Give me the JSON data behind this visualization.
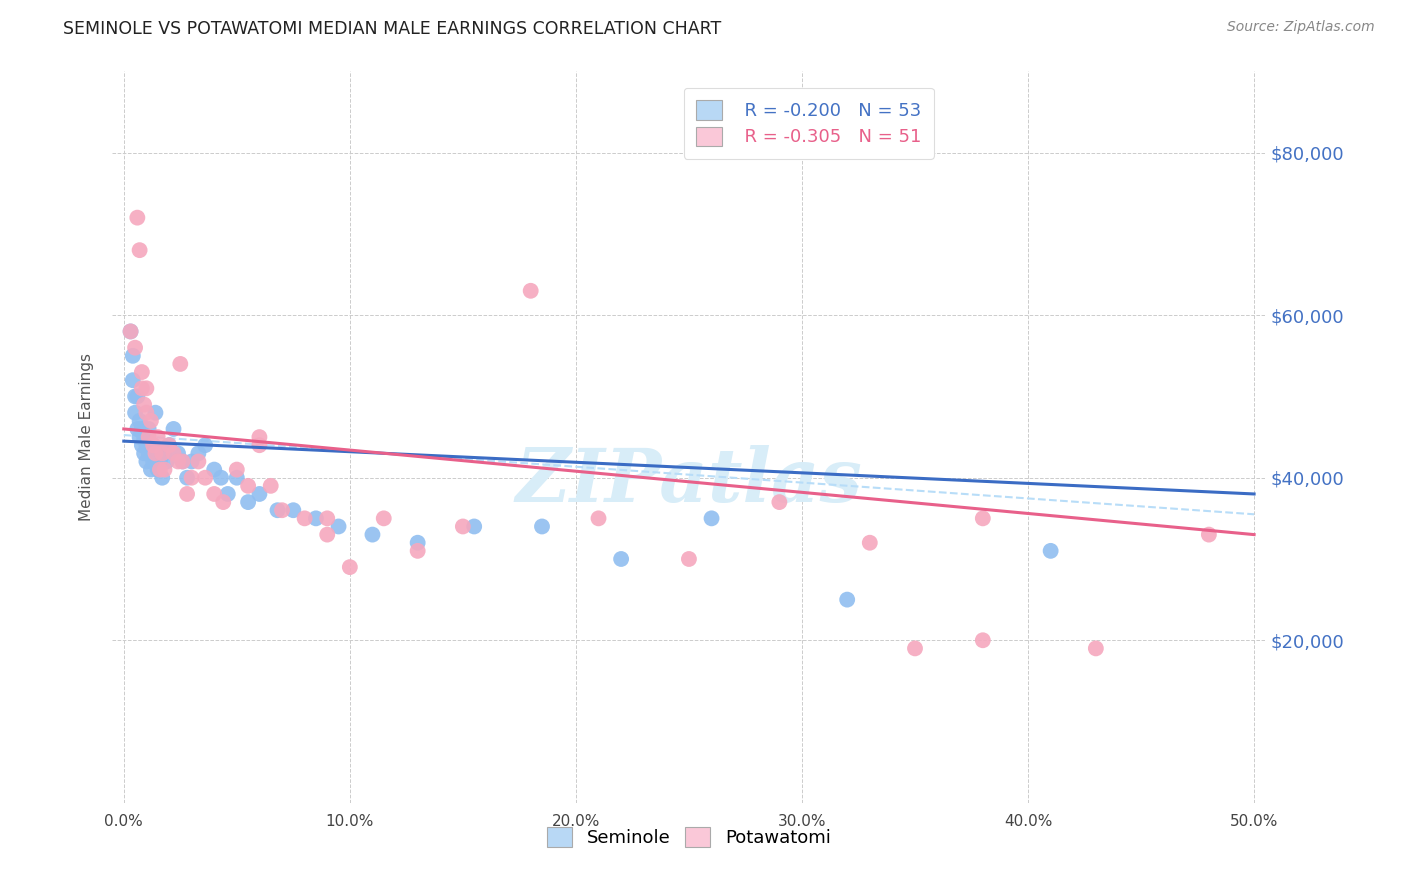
{
  "title": "SEMINOLE VS POTAWATOMI MEDIAN MALE EARNINGS CORRELATION CHART",
  "source": "Source: ZipAtlas.com",
  "ylabel": "Median Male Earnings",
  "y_ticks": [
    20000,
    40000,
    60000,
    80000
  ],
  "y_tick_labels": [
    "$20,000",
    "$40,000",
    "$60,000",
    "$80,000"
  ],
  "x_range": [
    0.0,
    0.5
  ],
  "y_range": [
    0,
    90000
  ],
  "seminole_R": "-0.200",
  "seminole_N": "53",
  "potawatomi_R": "-0.305",
  "potawatomi_N": "51",
  "seminole_color": "#90BEF0",
  "potawatomi_color": "#F5A8BE",
  "seminole_line_color": "#3B6CC4",
  "potawatomi_line_color": "#E8608A",
  "dash_line_color": "#B8DDF8",
  "watermark_color": "#D8EDF8",
  "background_color": "#FFFFFF",
  "grid_color": "#CCCCCC",
  "legend_color_blue": "#B8D8F5",
  "legend_color_pink": "#FAC8D8",
  "title_color": "#222222",
  "source_color": "#888888",
  "tick_color": "#4472C4",
  "label_color": "#555555",
  "seminole_x": [
    0.003,
    0.004,
    0.004,
    0.005,
    0.005,
    0.006,
    0.006,
    0.007,
    0.007,
    0.008,
    0.008,
    0.009,
    0.009,
    0.01,
    0.01,
    0.011,
    0.011,
    0.012,
    0.013,
    0.013,
    0.014,
    0.015,
    0.015,
    0.016,
    0.017,
    0.018,
    0.019,
    0.02,
    0.022,
    0.024,
    0.026,
    0.028,
    0.03,
    0.033,
    0.036,
    0.04,
    0.043,
    0.046,
    0.05,
    0.055,
    0.06,
    0.068,
    0.075,
    0.085,
    0.095,
    0.11,
    0.13,
    0.155,
    0.185,
    0.22,
    0.26,
    0.32,
    0.41
  ],
  "seminole_y": [
    58000,
    55000,
    52000,
    50000,
    48000,
    46000,
    50000,
    45000,
    47000,
    44000,
    46000,
    43000,
    45000,
    44000,
    42000,
    46000,
    43000,
    41000,
    44000,
    42000,
    48000,
    43000,
    41000,
    42000,
    40000,
    43000,
    42000,
    44000,
    46000,
    43000,
    42000,
    40000,
    42000,
    43000,
    44000,
    41000,
    40000,
    38000,
    40000,
    37000,
    38000,
    36000,
    36000,
    35000,
    34000,
    33000,
    32000,
    34000,
    34000,
    30000,
    35000,
    25000,
    31000
  ],
  "potawatomi_x": [
    0.003,
    0.005,
    0.006,
    0.007,
    0.008,
    0.008,
    0.009,
    0.01,
    0.01,
    0.011,
    0.012,
    0.013,
    0.014,
    0.015,
    0.016,
    0.017,
    0.018,
    0.02,
    0.022,
    0.024,
    0.026,
    0.028,
    0.03,
    0.033,
    0.036,
    0.04,
    0.044,
    0.05,
    0.055,
    0.06,
    0.065,
    0.07,
    0.08,
    0.09,
    0.1,
    0.115,
    0.13,
    0.15,
    0.18,
    0.21,
    0.25,
    0.29,
    0.33,
    0.38,
    0.43,
    0.48,
    0.06,
    0.025,
    0.09,
    0.35,
    0.38
  ],
  "potawatomi_y": [
    58000,
    56000,
    72000,
    68000,
    53000,
    51000,
    49000,
    48000,
    51000,
    45000,
    47000,
    44000,
    43000,
    45000,
    41000,
    43000,
    41000,
    44000,
    43000,
    42000,
    42000,
    38000,
    40000,
    42000,
    40000,
    38000,
    37000,
    41000,
    39000,
    44000,
    39000,
    36000,
    35000,
    33000,
    29000,
    35000,
    31000,
    34000,
    63000,
    35000,
    30000,
    37000,
    32000,
    35000,
    19000,
    33000,
    45000,
    54000,
    35000,
    19000,
    20000
  ]
}
